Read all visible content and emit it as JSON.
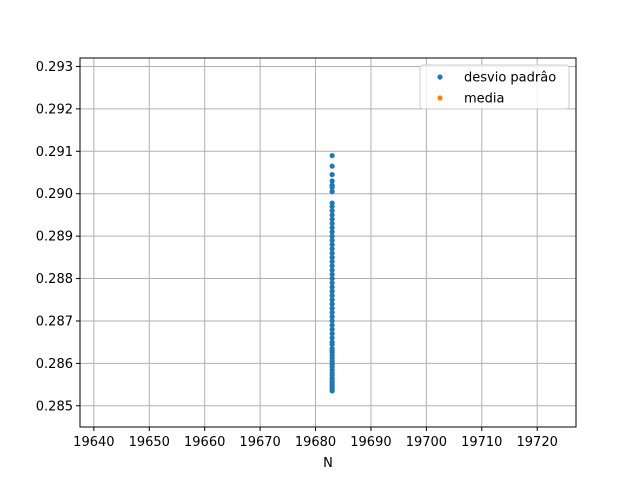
{
  "chart_data": {
    "type": "scatter",
    "title": "",
    "xlabel": "N",
    "ylabel": "",
    "xlim": [
      19637.5,
      19727.0
    ],
    "ylim": [
      0.2845,
      0.2932
    ],
    "xticks": [
      19640,
      19650,
      19660,
      19670,
      19680,
      19690,
      19700,
      19710,
      19720
    ],
    "yticks": [
      0.285,
      0.286,
      0.287,
      0.288,
      0.289,
      0.29,
      0.291,
      0.292,
      0.293
    ],
    "grid": true,
    "legend_position": "top-right",
    "series": [
      {
        "name": "desvio padrâo",
        "color": "#1f77b4",
        "x": [
          19683,
          19683,
          19683,
          19683,
          19683,
          19683,
          19683,
          19683,
          19683,
          19683,
          19683,
          19683,
          19683,
          19683,
          19683,
          19683,
          19683,
          19683,
          19683,
          19683,
          19683,
          19683,
          19683,
          19683,
          19683,
          19683,
          19683,
          19683,
          19683,
          19683,
          19683,
          19683,
          19683,
          19683,
          19683,
          19683,
          19683,
          19683,
          19683,
          19683,
          19683,
          19683,
          19683,
          19683,
          19683,
          19683,
          19683,
          19683,
          19683,
          19683,
          19683,
          19683,
          19683,
          19683,
          19683,
          19683,
          19683,
          19683,
          19683,
          19683
        ],
        "y": [
          0.2909,
          0.29065,
          0.29045,
          0.2903,
          0.2902,
          0.29015,
          0.29005,
          0.28978,
          0.2897,
          0.2896,
          0.2895,
          0.2894,
          0.2893,
          0.2892,
          0.2891,
          0.289,
          0.2889,
          0.2888,
          0.2887,
          0.2886,
          0.2885,
          0.2884,
          0.2883,
          0.2882,
          0.2881,
          0.288,
          0.2879,
          0.2878,
          0.2877,
          0.2876,
          0.2875,
          0.2874,
          0.2873,
          0.2872,
          0.2871,
          0.287,
          0.2869,
          0.2868,
          0.2867,
          0.2866,
          0.2865,
          0.28645,
          0.28635,
          0.2863,
          0.28625,
          0.28618,
          0.28612,
          0.28605,
          0.28598,
          0.28592,
          0.28585,
          0.28578,
          0.28572,
          0.28565,
          0.2856,
          0.28555,
          0.2855,
          0.28545,
          0.2854,
          0.28535
        ]
      },
      {
        "name": "media",
        "color": "#ff7f0e",
        "x": [],
        "y": []
      }
    ]
  }
}
